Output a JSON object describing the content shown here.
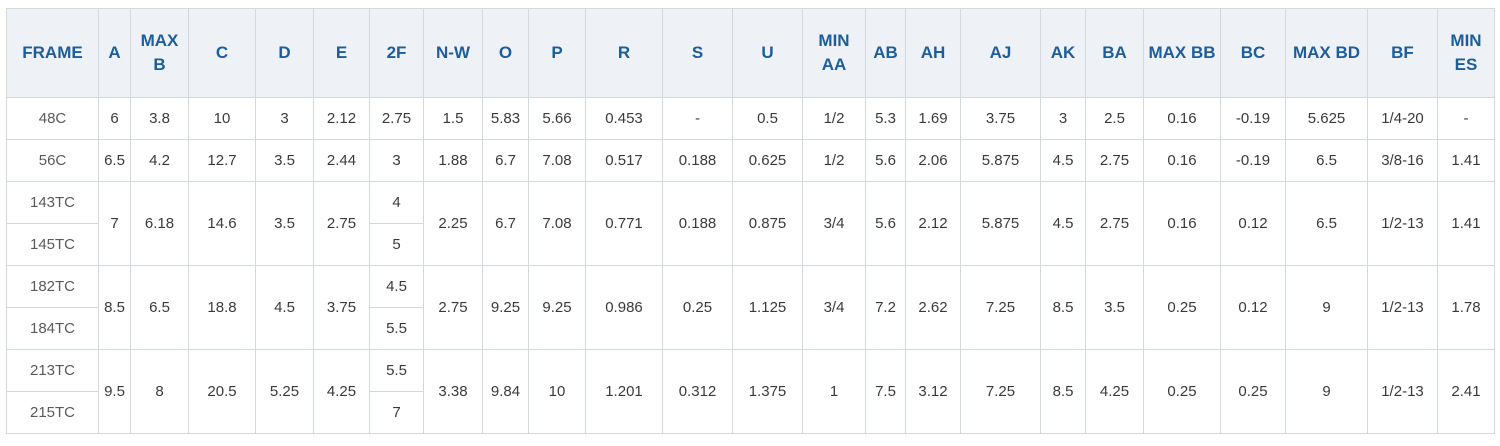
{
  "table": {
    "header": [
      "FRAME",
      "A",
      "MAX B",
      "C",
      "D",
      "E",
      "2F",
      "N-W",
      "O",
      "P",
      "R",
      "S",
      "U",
      "MIN AA",
      "AB",
      "AH",
      "AJ",
      "AK",
      "BA",
      "MAX BB",
      "BC",
      "MAX BD",
      "BF",
      "MIN ES"
    ],
    "rows": [
      [
        "48C",
        "6",
        "3.8",
        "10",
        "3",
        "2.12",
        "2.75",
        "1.5",
        "5.83",
        "5.66",
        "0.453",
        "-",
        "0.5",
        "1/2",
        "5.3",
        "1.69",
        "3.75",
        "3",
        "2.5",
        "0.16",
        "-0.19",
        "5.625",
        "1/4-20",
        "-"
      ],
      [
        "56C",
        "6.5",
        "4.2",
        "12.7",
        "3.5",
        "2.44",
        "3",
        "1.88",
        "6.7",
        "7.08",
        "0.517",
        "0.188",
        "0.625",
        "1/2",
        "5.6",
        "2.06",
        "5.875",
        "4.5",
        "2.75",
        "0.16",
        "-0.19",
        "6.5",
        "3/8-16",
        "1.41"
      ],
      [
        [
          "143TC",
          "145TC"
        ],
        "7",
        "6.18",
        "14.6",
        "3.5",
        "2.75",
        [
          "4",
          "5"
        ],
        "2.25",
        "6.7",
        "7.08",
        "0.771",
        "0.188",
        "0.875",
        "3/4",
        "5.6",
        "2.12",
        "5.875",
        "4.5",
        "2.75",
        "0.16",
        "0.12",
        "6.5",
        "1/2-13",
        "1.41"
      ],
      [
        [
          "182TC",
          "184TC"
        ],
        "8.5",
        "6.5",
        "18.8",
        "4.5",
        "3.75",
        [
          "4.5",
          "5.5"
        ],
        "2.75",
        "9.25",
        "9.25",
        "0.986",
        "0.25",
        "1.125",
        "3/4",
        "7.2",
        "2.62",
        "7.25",
        "8.5",
        "3.5",
        "0.25",
        "0.12",
        "9",
        "1/2-13",
        "1.78"
      ],
      [
        [
          "213TC",
          "215TC"
        ],
        "9.5",
        "8",
        "20.5",
        "5.25",
        "4.25",
        [
          "5.5",
          "7"
        ],
        "3.38",
        "9.84",
        "10",
        "1.201",
        "0.312",
        "1.375",
        "1",
        "7.5",
        "3.12",
        "7.25",
        "8.5",
        "4.25",
        "0.25",
        "0.25",
        "9",
        "1/2-13",
        "2.41"
      ]
    ]
  }
}
